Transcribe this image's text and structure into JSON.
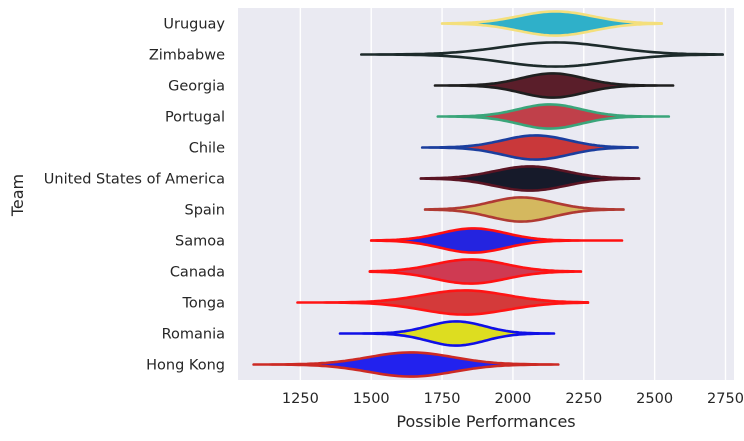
{
  "chart_data": {
    "type": "violin",
    "orientation": "horizontal",
    "title": "",
    "xlabel": "Possible Performances",
    "ylabel": "Team",
    "xlim": [
      1030,
      2780
    ],
    "xticks": [
      1250,
      1500,
      1750,
      2000,
      2250,
      2500,
      2750
    ],
    "grid": true,
    "background": "#eaeaf2",
    "categories": [
      "Uruguay",
      "Zimbabwe",
      "Georgia",
      "Portugal",
      "Chile",
      "United States of America",
      "Spain",
      "Samoa",
      "Canada",
      "Tonga",
      "Romania",
      "Hong Kong"
    ],
    "series": [
      {
        "team": "Uruguay",
        "min": 1750,
        "max": 2525,
        "peak": 2150,
        "spread": 130,
        "fill": "#2fb0c9",
        "edge": "#f4df7c"
      },
      {
        "team": "Zimbabwe",
        "min": 1465,
        "max": 2740,
        "peak": 2150,
        "spread": 190,
        "fill": "none",
        "edge": "#1d2b2b"
      },
      {
        "team": "Georgia",
        "min": 1725,
        "max": 2565,
        "peak": 2140,
        "spread": 110,
        "fill": "#5a1e2a",
        "edge": "#1f1f1f"
      },
      {
        "team": "Portugal",
        "min": 1735,
        "max": 2550,
        "peak": 2130,
        "spread": 110,
        "fill": "#c0404a",
        "edge": "#3aa57a"
      },
      {
        "team": "Chile",
        "min": 1680,
        "max": 2440,
        "peak": 2080,
        "spread": 115,
        "fill": "#c9383a",
        "edge": "#1b3e9e"
      },
      {
        "team": "United States of America",
        "min": 1675,
        "max": 2445,
        "peak": 2060,
        "spread": 125,
        "fill": "#161a2a",
        "edge": "#5a1423"
      },
      {
        "team": "Spain",
        "min": 1690,
        "max": 2390,
        "peak": 2030,
        "spread": 110,
        "fill": "#d4b85f",
        "edge": "#b03a33"
      },
      {
        "team": "Samoa",
        "min": 1500,
        "max": 2385,
        "peak": 1860,
        "spread": 115,
        "fill": "#2424e0",
        "edge": "#ff1010"
      },
      {
        "team": "Canada",
        "min": 1495,
        "max": 2240,
        "peak": 1850,
        "spread": 125,
        "fill": "#cf3a52",
        "edge": "#ff1212"
      },
      {
        "team": "Tonga",
        "min": 1240,
        "max": 2265,
        "peak": 1830,
        "spread": 150,
        "fill": "#d43a3a",
        "edge": "#ff1414"
      },
      {
        "team": "Romania",
        "min": 1390,
        "max": 2145,
        "peak": 1800,
        "spread": 100,
        "fill": "#dddd20",
        "edge": "#1010e6"
      },
      {
        "team": "Hong Kong",
        "min": 1085,
        "max": 2160,
        "peak": 1640,
        "spread": 150,
        "fill": "#2222ee",
        "edge": "#cc2a24"
      }
    ]
  }
}
